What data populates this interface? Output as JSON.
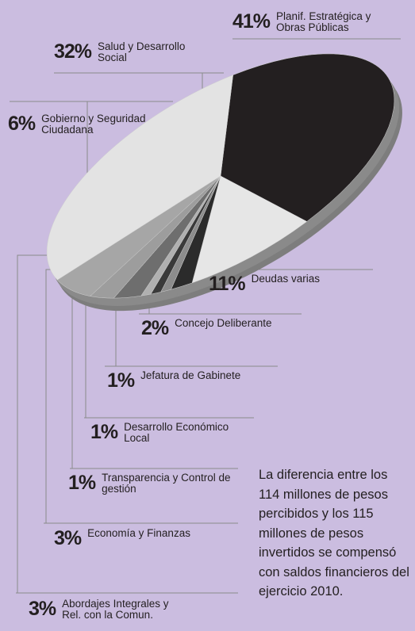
{
  "chart_data": {
    "type": "pie",
    "categories": [
      "Planif. Estratégica y Obras Públicas",
      "Deudas varias",
      "Concejo Deliberante",
      "Jefatura de Gabinete",
      "Desarrollo Económico Local",
      "Transparencia y Control de gestión",
      "Economía y Finanzas",
      "Abordajes Integrales y Rel. con la Comun.",
      "Gobierno y Seguridad Ciudadana",
      "Salud y Desarrollo Social"
    ],
    "values": [
      41,
      11,
      2,
      1,
      1,
      1,
      3,
      3,
      6,
      32
    ],
    "value_labels": [
      "41%",
      "11%",
      "2%",
      "1%",
      "1%",
      "1%",
      "3%",
      "3%",
      "6%",
      "32%"
    ],
    "colors": [
      "#231f20",
      "#e6e6e6",
      "#2b2b2b",
      "#8c8c8c",
      "#3a3a3a",
      "#b0b0b0",
      "#6e6e6e",
      "#9d9d9d",
      "#a6a6a6",
      "#e3e3e3"
    ],
    "annotation": "La diferencia entre los 114 millones de pesos percibidos y los 115 millones de pesos invertidos se compensó con saldos financieros del ejercicio 2010."
  }
}
